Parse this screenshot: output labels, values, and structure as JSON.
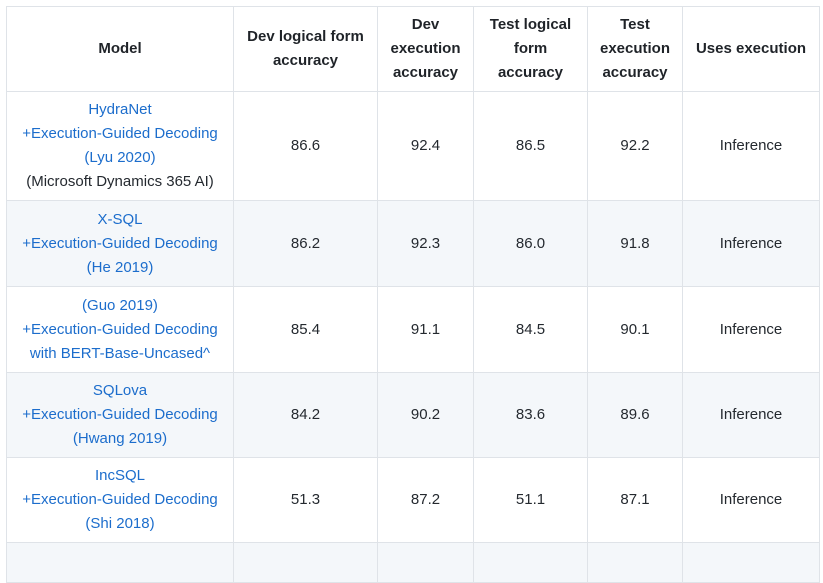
{
  "colors": {
    "link": "#1c6dcc",
    "stripe_background": "#f4f7fa",
    "border": "#dfe3e8",
    "header_text": "#1f2328",
    "body_text": "#24292f"
  },
  "table": {
    "columns": [
      {
        "id": "model",
        "label": "Model"
      },
      {
        "id": "dev_lf",
        "label": "Dev logical form accuracy"
      },
      {
        "id": "dev_ex",
        "label": "Dev execution accuracy"
      },
      {
        "id": "test_lf",
        "label": "Test logical form accuracy"
      },
      {
        "id": "test_ex",
        "label": "Test execution accuracy"
      },
      {
        "id": "uses_execution",
        "label": "Uses execution"
      }
    ],
    "rows": [
      {
        "model": {
          "link_lines": [
            "HydraNet",
            "+Execution-Guided Decoding",
            "(Lyu 2020)"
          ],
          "plain_lines": [
            "(Microsoft Dynamics 365 AI)"
          ]
        },
        "dev_lf": "86.6",
        "dev_ex": "92.4",
        "test_lf": "86.5",
        "test_ex": "92.2",
        "uses_execution": "Inference"
      },
      {
        "model": {
          "link_lines": [
            "X-SQL",
            "+Execution-Guided Decoding",
            "(He 2019)"
          ],
          "plain_lines": []
        },
        "dev_lf": "86.2",
        "dev_ex": "92.3",
        "test_lf": "86.0",
        "test_ex": "91.8",
        "uses_execution": "Inference"
      },
      {
        "model": {
          "link_lines": [
            "(Guo 2019)",
            "+Execution-Guided Decoding",
            "with BERT-Base-Uncased^"
          ],
          "plain_lines": []
        },
        "dev_lf": "85.4",
        "dev_ex": "91.1",
        "test_lf": "84.5",
        "test_ex": "90.1",
        "uses_execution": "Inference"
      },
      {
        "model": {
          "link_lines": [
            "SQLova",
            "+Execution-Guided Decoding",
            "(Hwang 2019)"
          ],
          "plain_lines": []
        },
        "dev_lf": "84.2",
        "dev_ex": "90.2",
        "test_lf": "83.6",
        "test_ex": "89.6",
        "uses_execution": "Inference"
      },
      {
        "model": {
          "link_lines": [
            "IncSQL",
            "+Execution-Guided Decoding",
            "(Shi 2018)"
          ],
          "plain_lines": []
        },
        "dev_lf": "51.3",
        "dev_ex": "87.2",
        "test_lf": "51.1",
        "test_ex": "87.1",
        "uses_execution": "Inference"
      }
    ],
    "partial_next_row_visible": true
  }
}
